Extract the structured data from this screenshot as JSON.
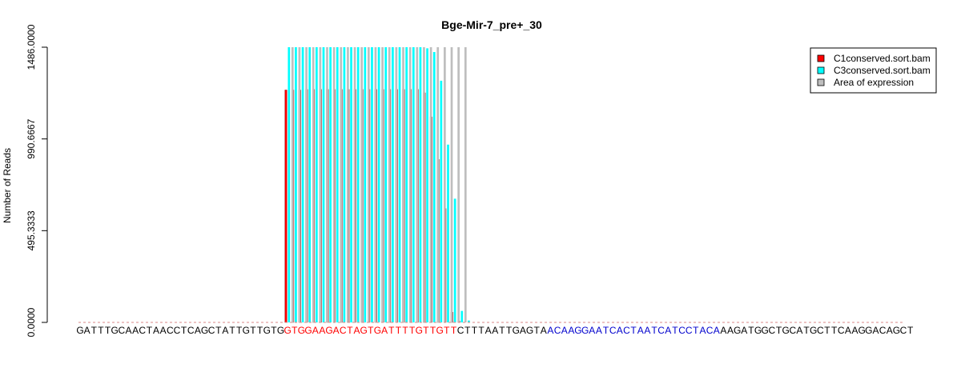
{
  "chart_data": {
    "type": "bar",
    "title": "Bge-Mir-7_pre+_30",
    "ylabel": "Number of Reads",
    "xlabel": "",
    "ylim": [
      0,
      1486
    ],
    "yticks": [
      "0.0000",
      "495.3333",
      "990.6667",
      "1486.0000"
    ],
    "ytick_values": [
      0,
      495.3333,
      990.6667,
      1486
    ],
    "sequence": "GATTTGCAACTAACCTCAGCTATTGTTGTGTGGAAGACTAGTGATTTTGTTGTTCTTTAATTGAGTAACAAGGAATCACTAATCATCCTACAAAGATGGCTGCATGCTTCAAGGACAGCT",
    "sequence_segments": [
      {
        "text": "GATTTGCAACTAACCTCAGCTATTGTTGTG",
        "color": "#000000"
      },
      {
        "text": "GTGGAAGACTAGTGATTTTGTTGTT",
        "color": "#ff0000"
      },
      {
        "text": "CTTTAATTGAGTA",
        "color": "#000000"
      },
      {
        "text": "ACAAGGAATCACTAATCATCCTACA",
        "color": "#0000cd"
      },
      {
        "text": "AAGATGGCTGCATGCTTCAAGGACAGCT",
        "color": "#000000"
      }
    ],
    "series": [
      {
        "name": "C1conserved.sort.bam",
        "color": "#ff0000",
        "values": [
          0,
          0,
          0,
          0,
          0,
          0,
          0,
          0,
          0,
          0,
          0,
          0,
          0,
          0,
          0,
          0,
          0,
          0,
          0,
          0,
          0,
          0,
          0,
          0,
          0,
          0,
          0,
          0,
          0,
          0,
          1255,
          1255,
          1255,
          1258,
          1258,
          1258,
          1258,
          1258,
          1258,
          1258,
          1258,
          1258,
          1258,
          1258,
          1258,
          1258,
          1258,
          1258,
          1258,
          1258,
          1240,
          1110,
          880,
          615,
          55,
          8,
          0,
          0,
          0,
          0,
          0,
          0,
          0,
          0,
          0,
          0,
          0,
          0,
          0,
          0,
          0,
          0,
          0,
          0,
          0,
          0,
          0,
          0,
          0,
          0,
          0,
          0,
          0,
          0,
          0,
          0,
          0,
          0,
          0,
          0,
          0,
          0,
          0,
          0,
          0,
          0,
          0,
          0,
          0,
          0,
          0,
          0,
          0,
          0,
          0,
          0,
          0,
          0,
          0,
          0,
          0,
          0,
          0,
          0,
          0,
          0,
          0,
          0,
          0,
          0,
          0
        ]
      },
      {
        "name": "C3conserved.sort.bam",
        "color": "#00ffff",
        "values": [
          0,
          0,
          0,
          0,
          0,
          0,
          0,
          0,
          0,
          0,
          0,
          0,
          0,
          0,
          0,
          0,
          0,
          0,
          0,
          0,
          0,
          0,
          0,
          0,
          0,
          0,
          0,
          0,
          0,
          0,
          1486,
          1486,
          1486,
          1486,
          1486,
          1486,
          1486,
          1486,
          1486,
          1486,
          1486,
          1486,
          1486,
          1486,
          1486,
          1486,
          1486,
          1486,
          1486,
          1486,
          1480,
          1460,
          1305,
          960,
          668,
          62,
          10,
          0,
          0,
          0,
          0,
          0,
          0,
          0,
          0,
          0,
          0,
          0,
          0,
          0,
          0,
          0,
          0,
          0,
          0,
          0,
          0,
          0,
          0,
          0,
          0,
          0,
          0,
          0,
          0,
          0,
          0,
          0,
          0,
          0,
          0,
          0,
          0,
          0,
          0,
          0,
          0,
          0,
          0,
          0,
          0,
          0,
          0,
          0,
          0,
          0,
          0,
          0,
          0,
          0,
          0,
          0,
          0,
          0,
          0,
          0,
          0,
          0,
          0,
          0,
          0
        ]
      },
      {
        "name": "Area of expression",
        "color": "#bebebe",
        "values": [
          0,
          0,
          0,
          0,
          0,
          0,
          0,
          0,
          0,
          0,
          0,
          0,
          0,
          0,
          0,
          0,
          0,
          0,
          0,
          0,
          0,
          0,
          0,
          0,
          0,
          0,
          0,
          0,
          0,
          0,
          1486,
          1486,
          1486,
          1486,
          1486,
          1486,
          1486,
          1486,
          1486,
          1486,
          1486,
          1486,
          1486,
          1486,
          1486,
          1486,
          1486,
          1486,
          1486,
          1486,
          1486,
          1486,
          1486,
          1486,
          1486,
          1486,
          0,
          0,
          0,
          0,
          0,
          0,
          0,
          0,
          0,
          0,
          0,
          0,
          0,
          0,
          0,
          0,
          0,
          0,
          0,
          0,
          0,
          0,
          0,
          0,
          0,
          0,
          0,
          0,
          0,
          0,
          0,
          0,
          0,
          0,
          0,
          0,
          0,
          0,
          0,
          0,
          0,
          0,
          0,
          0,
          0,
          0,
          0,
          0,
          0,
          0,
          0,
          0,
          0,
          0,
          0,
          0,
          0,
          0,
          0,
          0,
          0,
          0,
          0,
          0,
          0
        ]
      }
    ],
    "legend": {
      "placement": "top-right",
      "entries": [
        {
          "label": "C1conserved.sort.bam",
          "color": "#ff0000"
        },
        {
          "label": "C3conserved.sort.bam",
          "color": "#00ffff"
        },
        {
          "label": "Area of expression",
          "color": "#bebebe"
        }
      ]
    },
    "grid": false
  }
}
